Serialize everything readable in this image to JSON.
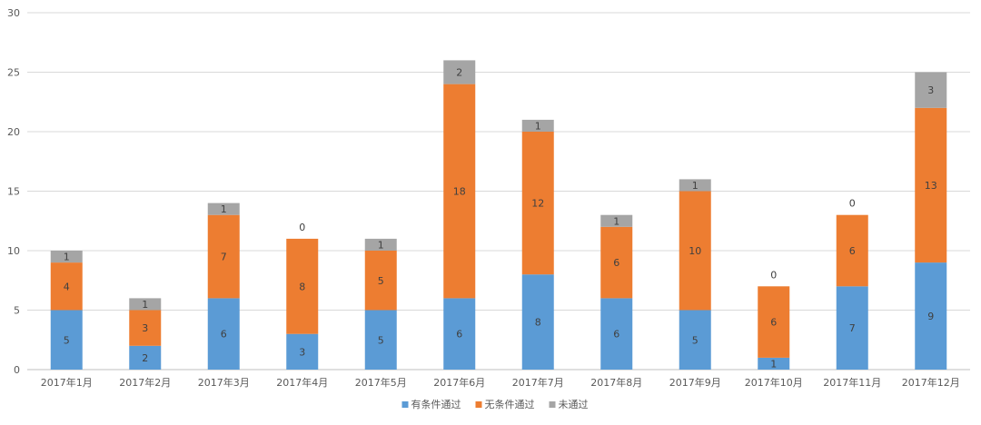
{
  "chart_data": {
    "type": "bar",
    "stacked": true,
    "title": "",
    "xlabel": "",
    "ylabel": "",
    "ylim": [
      0,
      30
    ],
    "yticks": [
      0,
      5,
      10,
      15,
      20,
      25,
      30
    ],
    "grid": true,
    "legend_position": "bottom",
    "categories": [
      "2017年1月",
      "2017年2月",
      "2017年3月",
      "2017年4月",
      "2017年5月",
      "2017年6月",
      "2017年7月",
      "2017年8月",
      "2017年9月",
      "2017年10月",
      "2017年11月",
      "2017年12月"
    ],
    "series": [
      {
        "name": "有条件通过",
        "color": "#5b9bd5",
        "values": [
          5,
          2,
          6,
          3,
          5,
          6,
          8,
          6,
          5,
          1,
          7,
          9
        ]
      },
      {
        "name": "无条件通过",
        "color": "#ed7d31",
        "values": [
          4,
          3,
          7,
          8,
          5,
          18,
          12,
          6,
          10,
          6,
          6,
          13
        ]
      },
      {
        "name": "未通过",
        "color": "#a5a5a5",
        "values": [
          1,
          1,
          1,
          0,
          1,
          2,
          1,
          1,
          1,
          0,
          0,
          3
        ]
      }
    ]
  }
}
